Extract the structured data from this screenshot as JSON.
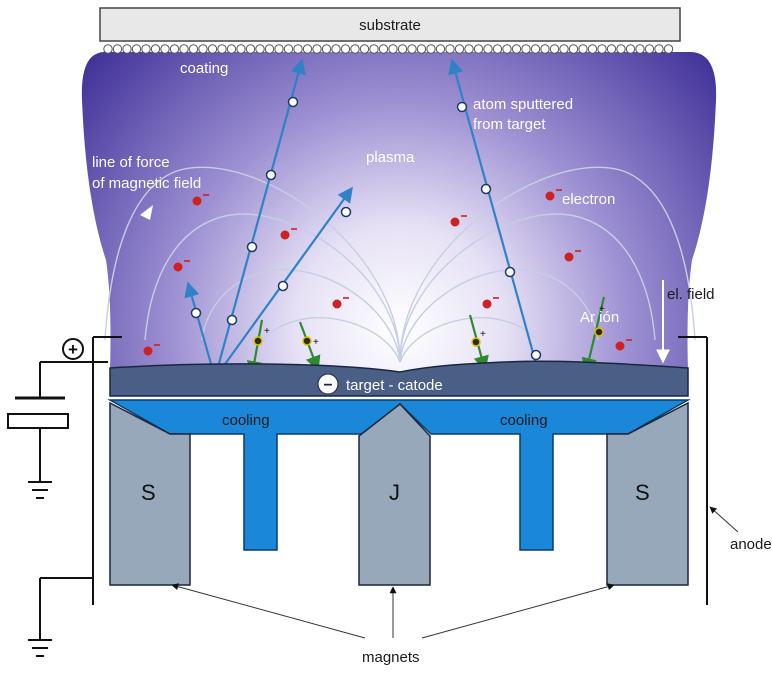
{
  "labels": {
    "substrate": "substrate",
    "coating": "coating",
    "atom_line1": "atom sputtered",
    "atom_line2": "from target",
    "plasma": "plasma",
    "force_line1": "line of force",
    "force_line2": "of magnetic field",
    "electron": "electron",
    "el_field": "el. field",
    "ar_ion": "Ar ión",
    "target_cathode": "target - catode",
    "cooling_left": "cooling",
    "cooling_right": "cooling",
    "magnet_left": "S",
    "magnet_center": "J",
    "magnet_right": "S",
    "magnets": "magnets",
    "anode": "anode",
    "plus_sign": "+",
    "minus_sign": "−"
  },
  "colors": {
    "plasma_edge": "#3d2e96",
    "plasma_center": "#ffffff",
    "target": "#4a5f86",
    "cooling": "#1a87d8",
    "magnet": "#97a8ba",
    "atom_path": "#2f82c8",
    "ion_path": "#2d8a2d",
    "electron": "#cc2222",
    "field_line": "#c5cfe4"
  }
}
